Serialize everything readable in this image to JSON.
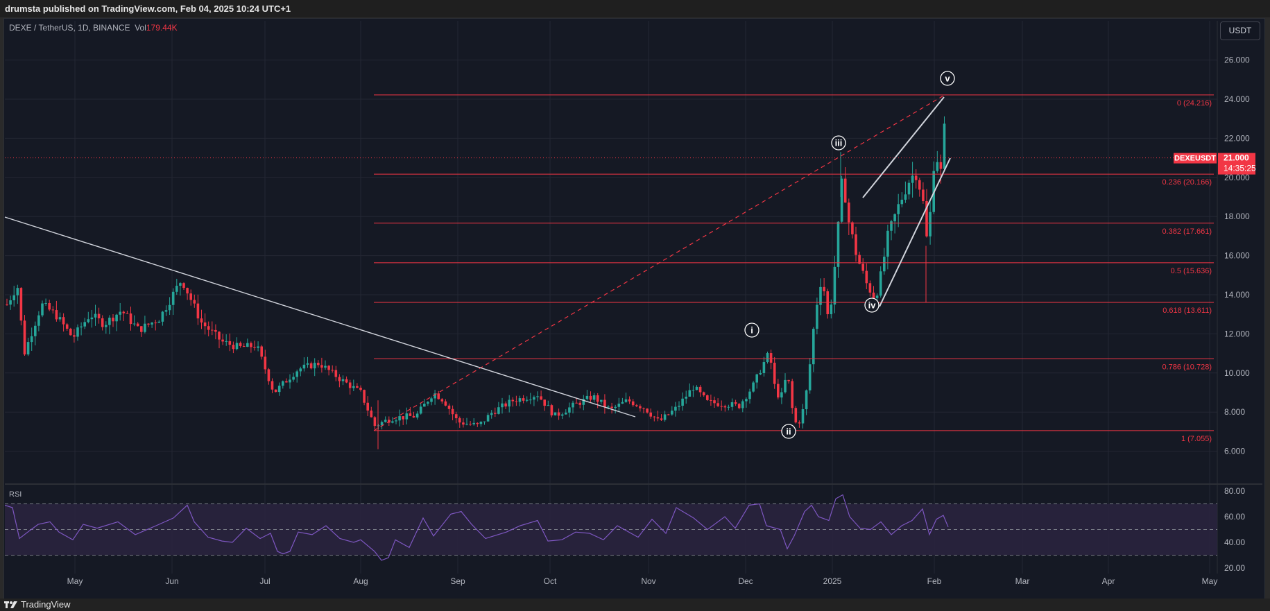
{
  "header": {
    "published_text": "drumsta published on TradingView.com, Feb 04, 2025 10:24 UTC+1"
  },
  "legend": {
    "symbol": "DEXE / TetherUS, 1D, BINANCE",
    "vol_label": "Vol",
    "vol_value": "179.44K"
  },
  "currency_button": "USDT",
  "price_tag": {
    "symbol": "DEXEUSDT",
    "price": "21.000",
    "countdown": "14:35:25",
    "color": "#f23645"
  },
  "price_axis": [
    "26.000",
    "24.000",
    "22.000",
    "20.000",
    "18.000",
    "16.000",
    "14.000",
    "12.000",
    "10.000",
    "8.000",
    "6.000"
  ],
  "rsi_axis": [
    "80.00",
    "60.00",
    "40.00",
    "20.00"
  ],
  "rsi_title": "RSI",
  "months": [
    "May",
    "Jun",
    "Jul",
    "Aug",
    "Sep",
    "Oct",
    "Nov",
    "Dec",
    "2025",
    "Feb",
    "Mar",
    "Apr",
    "May"
  ],
  "fib_levels": [
    {
      "label": "0 (24.216)",
      "ratio": 0,
      "price": 24.216
    },
    {
      "label": "0.236 (20.166)",
      "ratio": 0.236,
      "price": 20.166
    },
    {
      "label": "0.382 (17.661)",
      "ratio": 0.382,
      "price": 17.661
    },
    {
      "label": "0.5 (15.636)",
      "ratio": 0.5,
      "price": 15.636
    },
    {
      "label": "0.618 (13.611)",
      "ratio": 0.618,
      "price": 13.611
    },
    {
      "label": "0.786 (10.728)",
      "ratio": 0.786,
      "price": 10.728
    },
    {
      "label": "1 (7.055)",
      "ratio": 1,
      "price": 7.055
    }
  ],
  "wave_labels": [
    "i",
    "ii",
    "iii",
    "iv",
    "v"
  ],
  "footer": {
    "brand": "TradingView"
  },
  "colors": {
    "up": "#26a69a",
    "down": "#f23645",
    "fib": "#f23645",
    "rsi_line": "#7e57c2",
    "rsi_band": "#2a2540",
    "bg": "#151924",
    "grid": "#242733",
    "trendline": "#d1d4dc"
  },
  "chart_data": {
    "type": "candlestick",
    "title": "DEXE / TetherUS, 1D, BINANCE",
    "xlabel": "",
    "ylabel": "USDT",
    "ylim": [
      5.0,
      27.0
    ],
    "x_ticks": [
      "May",
      "Jun",
      "Jul",
      "Aug",
      "Sep",
      "Oct",
      "Nov",
      "Dec",
      "2025",
      "Feb",
      "Mar",
      "Apr",
      "May"
    ],
    "y_ticks": [
      6,
      8,
      10,
      12,
      14,
      16,
      18,
      20,
      22,
      24,
      26
    ],
    "grid": true,
    "last_price": 21.0,
    "approx_closes_monthly": [
      {
        "month": "Apr 2024",
        "close": 13.0
      },
      {
        "month": "May 2024",
        "close": 12.5
      },
      {
        "month": "Jun 2024",
        "close": 11.0
      },
      {
        "month": "Jul 2024",
        "close": 9.5
      },
      {
        "month": "Aug 2024",
        "close": 8.5
      },
      {
        "month": "Sep 2024",
        "close": 7.5
      },
      {
        "month": "Oct 2024",
        "close": 8.3
      },
      {
        "month": "Nov 2024",
        "close": 9.0
      },
      {
        "month": "Dec 2024",
        "close": 10.5
      },
      {
        "month": "Jan 2025",
        "close": 20.0
      },
      {
        "month": "Feb 2025",
        "close": 21.0
      }
    ],
    "key_points": [
      {
        "label": "i",
        "date": "early Dec 2024",
        "price": 11.5
      },
      {
        "label": "ii",
        "date": "mid Dec 2024",
        "price": 7.1
      },
      {
        "label": "iii",
        "date": "early Jan 2025",
        "price": 21.3
      },
      {
        "label": "iv",
        "date": "mid Jan 2025",
        "price": 13.6
      },
      {
        "label": "v",
        "date": "early Feb 2025",
        "price": 24.2
      }
    ],
    "fibonacci": {
      "from": 7.055,
      "to": 24.216,
      "levels": [
        {
          "ratio": 0,
          "price": 24.216
        },
        {
          "ratio": 0.236,
          "price": 20.166
        },
        {
          "ratio": 0.382,
          "price": 17.661
        },
        {
          "ratio": 0.5,
          "price": 15.636
        },
        {
          "ratio": 0.618,
          "price": 13.611
        },
        {
          "ratio": 0.786,
          "price": 10.728
        },
        {
          "ratio": 1,
          "price": 7.055
        }
      ]
    },
    "rsi": {
      "ylim": [
        20,
        80
      ],
      "bands": [
        30,
        50,
        70
      ],
      "ticks": [
        20,
        40,
        60,
        80
      ],
      "approx_values_monthly": [
        {
          "month": "Apr 2024",
          "value": 69
        },
        {
          "month": "May 2024",
          "value": 50
        },
        {
          "month": "Jun 2024",
          "value": 69
        },
        {
          "month": "Jul 2024",
          "value": 32
        },
        {
          "month": "Aug 2024",
          "value": 26
        },
        {
          "month": "Sep 2024",
          "value": 62
        },
        {
          "month": "Oct 2024",
          "value": 58
        },
        {
          "month": "Nov 2024",
          "value": 55
        },
        {
          "month": "Dec 2024",
          "value": 70
        },
        {
          "month": "Jan 2025",
          "value": 77
        },
        {
          "month": "Feb 2025",
          "value": 58
        }
      ]
    }
  }
}
